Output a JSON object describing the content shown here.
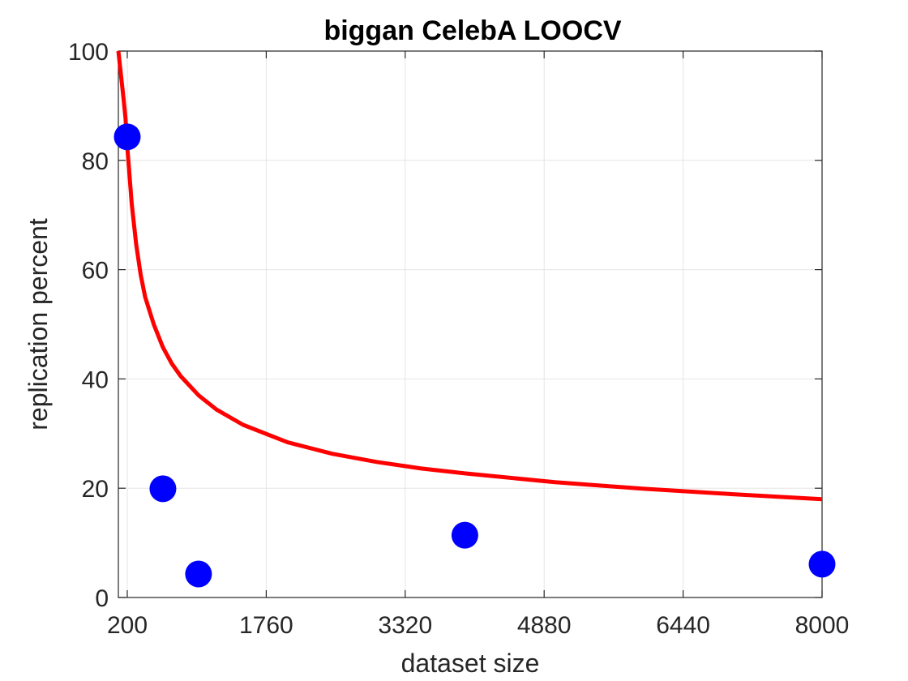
{
  "chart_data": {
    "type": "scatter",
    "title": "biggan CelebA LOOCV",
    "xlabel": "dataset size",
    "ylabel": "replication percent",
    "xlim": [
      100,
      8000
    ],
    "ylim": [
      0,
      100
    ],
    "xticks": [
      200,
      1760,
      3320,
      4880,
      6440,
      8000
    ],
    "yticks": [
      0,
      20,
      40,
      60,
      80,
      100
    ],
    "grid": true,
    "series": [
      {
        "type": "scatter",
        "color": "#0000ff",
        "points": [
          {
            "x": 200,
            "y": 84.3
          },
          {
            "x": 600,
            "y": 19.9
          },
          {
            "x": 1000,
            "y": 4.3
          },
          {
            "x": 3990,
            "y": 11.4
          },
          {
            "x": 8000,
            "y": 6.1
          }
        ]
      },
      {
        "type": "line",
        "color": "#ff0000",
        "x": [
          100,
          120,
          140,
          160,
          180,
          200,
          250,
          300,
          350,
          400,
          500,
          600,
          700,
          800,
          1000,
          1200,
          1500,
          2000,
          2500,
          3000,
          3500,
          4000,
          5000,
          6000,
          7000,
          8000
        ],
        "y": [
          100,
          97,
          94,
          91,
          87.7,
          82.5,
          72,
          64.6,
          59.1,
          55,
          49.9,
          45.8,
          42.8,
          40.5,
          37,
          34.4,
          31.6,
          28.4,
          26.3,
          24.8,
          23.6,
          22.7,
          21.1,
          19.9,
          18.9,
          18
        ]
      }
    ]
  }
}
